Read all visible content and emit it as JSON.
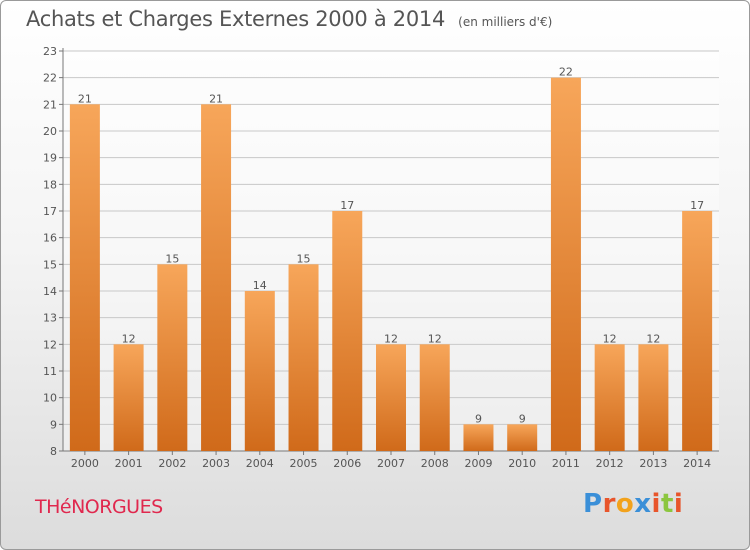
{
  "header": {
    "title": "Achats et Charges Externes 2000 à 2014",
    "unit": "(en milliers d'€)"
  },
  "footer": {
    "commune": "THéNORGUES",
    "logo": "Proxiti",
    "logo_colors": [
      "#3a8fd8",
      "#e8552b",
      "#f2a21c",
      "#3a8fd8",
      "#e8552b",
      "#8cc63f",
      "#e8552b"
    ]
  },
  "colors": {
    "bar_top": "#f7a65a",
    "bar_bottom": "#d06a1a",
    "grid": "#c8c8c8",
    "text": "#555555"
  },
  "chart_data": {
    "type": "bar",
    "categories": [
      "2000",
      "2001",
      "2002",
      "2003",
      "2004",
      "2005",
      "2006",
      "2007",
      "2008",
      "2009",
      "2010",
      "2011",
      "2012",
      "2013",
      "2014"
    ],
    "values": [
      21,
      12,
      15,
      21,
      14,
      15,
      17,
      12,
      12,
      9,
      9,
      22,
      12,
      12,
      17
    ],
    "ylim": [
      8,
      23
    ],
    "yticks": [
      8,
      9,
      10,
      11,
      12,
      13,
      14,
      15,
      16,
      17,
      18,
      19,
      20,
      21,
      22,
      23
    ],
    "grid": true,
    "title": "Achats et Charges Externes 2000 à 2014",
    "xlabel": "",
    "ylabel": ""
  }
}
